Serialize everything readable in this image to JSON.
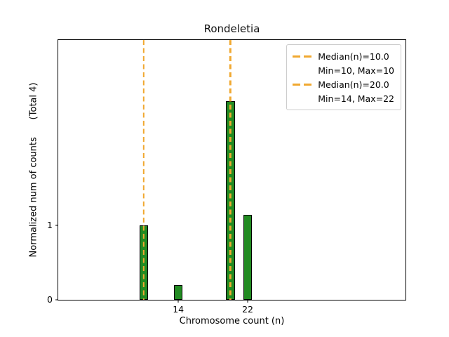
{
  "chart_data": {
    "type": "bar",
    "title": "Rondeletia",
    "xlabel": "Chromosome count (n)",
    "ylabel": "Normalized num of counts      (Total 4)",
    "x": [
      10,
      14,
      20,
      22
    ],
    "values": [
      1.0,
      0.2,
      2.68,
      1.14
    ],
    "bar_width": 1,
    "bar_color": "#228B22",
    "bar_edge_color": "#000000",
    "xlim": [
      0.15,
      40.2
    ],
    "ylim": [
      0,
      3.5
    ],
    "xticks": [
      14,
      22
    ],
    "yticks": [
      0,
      1
    ],
    "grid": false,
    "spine_color": "#000000",
    "vlines": [
      {
        "x": 10,
        "color": "#F0A830",
        "style": "dashed"
      },
      {
        "x": 20,
        "color": "#F0A830",
        "style": "dashed"
      }
    ],
    "legend": {
      "position": "upper right",
      "border_color": "#cccccc",
      "entries": [
        {
          "marker": "dash",
          "color": "#F0A830",
          "label": "Median(n)=10.0"
        },
        {
          "marker": "none",
          "color": "",
          "label": "Min=10, Max=10"
        },
        {
          "marker": "dash",
          "color": "#F0A830",
          "label": "Median(n)=20.0"
        },
        {
          "marker": "none",
          "color": "",
          "label": "Min=14, Max=22"
        }
      ]
    }
  }
}
